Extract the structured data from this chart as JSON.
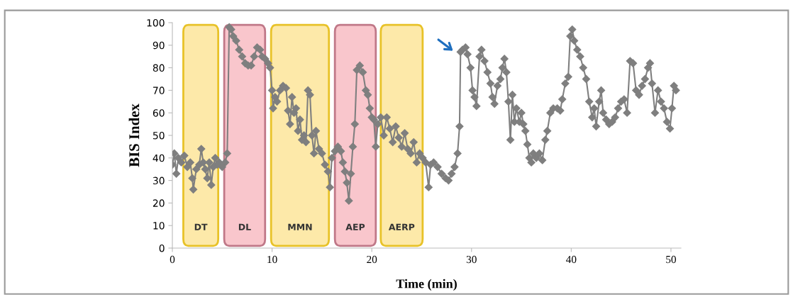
{
  "chart_data": {
    "type": "line",
    "xlabel": "Time (min)",
    "ylabel": "BIS Index",
    "xlim": [
      0,
      51
    ],
    "xticks": [
      0,
      10,
      20,
      30,
      40,
      50
    ],
    "ylim": [
      0,
      100
    ],
    "yticks": [
      0,
      10,
      20,
      30,
      40,
      50,
      60,
      70,
      80,
      90,
      100
    ],
    "grid": false,
    "legend": false,
    "marker": "diamond",
    "line_style": "solid",
    "bands": [
      {
        "axis": "x",
        "from": 1.1,
        "to": 4.6,
        "label": "DT",
        "color": "#fde9a9"
      },
      {
        "axis": "x",
        "from": 5.2,
        "to": 9.3,
        "label": "DL",
        "color": "#f9c6cc"
      },
      {
        "axis": "x",
        "from": 9.9,
        "to": 15.7,
        "label": "MMN",
        "color": "#fde9a9"
      },
      {
        "axis": "x",
        "from": 16.3,
        "to": 20.4,
        "label": "AEP",
        "color": "#f9c6cc"
      },
      {
        "axis": "x",
        "from": 20.9,
        "to": 25.1,
        "label": "AERP",
        "color": "#fde9a9"
      }
    ],
    "series": [
      {
        "color": "#7f7f7f",
        "x": [
          0,
          0.2,
          0.4,
          0.6,
          0.9,
          1.2,
          1.5,
          1.8,
          2.0,
          2.1,
          2.4,
          2.7,
          2.9,
          3.1,
          3.3,
          3.5,
          3.7,
          3.9,
          4.1,
          4.3,
          4.5,
          4.7,
          5.0,
          5.3,
          5.5,
          5.7,
          5.9,
          6.1,
          6.4,
          6.7,
          7.0,
          7.3,
          7.6,
          7.9,
          8.2,
          8.5,
          8.8,
          9.0,
          9.3,
          9.6,
          9.8,
          10.0,
          10.1,
          10.3,
          10.5,
          10.8,
          11.1,
          11.4,
          11.6,
          11.8,
          12.0,
          12.2,
          12.4,
          12.6,
          12.8,
          13.0,
          13.2,
          13.4,
          13.6,
          13.8,
          14.0,
          14.2,
          14.4,
          14.7,
          15.0,
          15.3,
          15.6,
          15.8,
          16.0,
          16.3,
          16.6,
          16.9,
          17.1,
          17.3,
          17.5,
          17.7,
          17.9,
          18.1,
          18.3,
          18.5,
          18.8,
          19.1,
          19.4,
          19.6,
          19.8,
          20.0,
          20.2,
          20.4,
          20.6,
          20.9,
          21.2,
          21.5,
          21.8,
          22.1,
          22.4,
          22.7,
          23.0,
          23.3,
          23.6,
          23.9,
          24.2,
          24.5,
          24.8,
          25.1,
          25.4,
          25.7,
          25.9,
          26.2,
          26.6,
          27.0,
          27.4,
          27.7,
          28.0,
          28.3,
          28.6,
          28.8,
          28.9,
          29.1,
          29.4,
          29.6,
          29.9,
          30.1,
          30.3,
          30.5,
          30.8,
          31.0,
          31.3,
          31.6,
          31.9,
          32.1,
          32.3,
          32.6,
          32.9,
          33.1,
          33.3,
          33.5,
          33.7,
          33.9,
          34.1,
          34.3,
          34.5,
          34.8,
          35.0,
          35.2,
          35.4,
          35.6,
          35.8,
          36.0,
          36.2,
          36.5,
          36.8,
          37.1,
          37.4,
          37.6,
          37.9,
          38.2,
          38.6,
          38.9,
          39.1,
          39.4,
          39.7,
          39.9,
          40.1,
          40.3,
          40.6,
          40.9,
          41.2,
          41.5,
          41.8,
          42.1,
          42.3,
          42.5,
          42.8,
          43.0,
          43.2,
          43.5,
          43.8,
          44.1,
          44.4,
          44.7,
          45.0,
          45.3,
          45.6,
          45.9,
          46.2,
          46.5,
          46.8,
          47.1,
          47.4,
          47.7,
          47.9,
          48.1,
          48.4,
          48.7,
          49.0,
          49.3,
          49.6,
          49.9,
          50.1,
          50.3,
          50.5
        ],
        "values": [
          37,
          42,
          33,
          40,
          38,
          41,
          36,
          38,
          31,
          26,
          35,
          37,
          44,
          38,
          35,
          31,
          38,
          28,
          36,
          40,
          37,
          38,
          36,
          38,
          42,
          98,
          97,
          94,
          92,
          88,
          85,
          82,
          81,
          81,
          85,
          89,
          88,
          85,
          84,
          82,
          80,
          70,
          62,
          67,
          65,
          70,
          72,
          71,
          61,
          55,
          67,
          60,
          62,
          52,
          57,
          48,
          50,
          47,
          70,
          68,
          50,
          42,
          52,
          44,
          42,
          37,
          34,
          27,
          40,
          43,
          45,
          43,
          38,
          34,
          29,
          21,
          33,
          45,
          55,
          79,
          81,
          78,
          70,
          68,
          62,
          58,
          57,
          45,
          55,
          58,
          50,
          58,
          53,
          47,
          54,
          49,
          45,
          51,
          44,
          42,
          47,
          38,
          42,
          40,
          38,
          27,
          37,
          38,
          36,
          33,
          31,
          30,
          33,
          36,
          42,
          54,
          87,
          88,
          89,
          86,
          80,
          70,
          67,
          63,
          85,
          88,
          83,
          78,
          73,
          67,
          64,
          72,
          75,
          80,
          84,
          78,
          65,
          48,
          68,
          56,
          62,
          56,
          60,
          55,
          52,
          46,
          40,
          38,
          42,
          40,
          42,
          39,
          48,
          52,
          60,
          62,
          62,
          61,
          66,
          73,
          76,
          94,
          97,
          92,
          88,
          85,
          80,
          75,
          65,
          58,
          62,
          54,
          65,
          70,
          60,
          57,
          55,
          56,
          58,
          62,
          65,
          66,
          60,
          83,
          82,
          70,
          68,
          72,
          75,
          80,
          82,
          73,
          60,
          70,
          65,
          62,
          56,
          53,
          62,
          72,
          70
        ]
      }
    ]
  }
}
